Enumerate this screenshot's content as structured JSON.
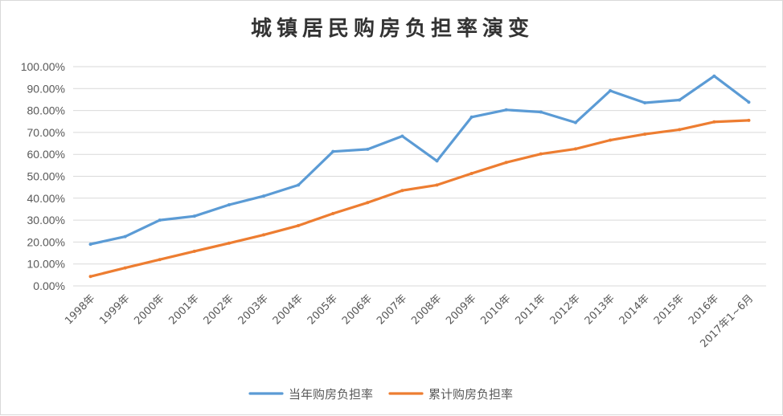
{
  "chart_data": {
    "type": "line",
    "title": "城镇居民购房负担率演变",
    "categories": [
      "1998年",
      "1999年",
      "2000年",
      "2001年",
      "2002年",
      "2003年",
      "2004年",
      "2005年",
      "2006年",
      "2007年",
      "2008年",
      "2009年",
      "2010年",
      "2011年",
      "2012年",
      "2013年",
      "2014年",
      "2015年",
      "2016年",
      "2017年1~6月"
    ],
    "series": [
      {
        "name": "当年购房负担率",
        "color": "#5b9bd5",
        "values": [
          19.0,
          22.5,
          30.0,
          31.8,
          37.0,
          41.0,
          46.0,
          61.3,
          62.3,
          68.3,
          57.0,
          77.0,
          80.3,
          79.3,
          74.5,
          89.0,
          83.5,
          84.8,
          95.7,
          83.8
        ]
      },
      {
        "name": "累计购房负担率",
        "color": "#ed7d31",
        "values": [
          4.3,
          8.2,
          12.0,
          15.8,
          19.5,
          23.3,
          27.5,
          33.0,
          38.0,
          43.5,
          46.0,
          51.3,
          56.3,
          60.2,
          62.5,
          66.5,
          69.2,
          71.3,
          74.8,
          75.5
        ]
      }
    ],
    "y_ticks": [
      "0.00%",
      "10.00%",
      "20.00%",
      "30.00%",
      "40.00%",
      "50.00%",
      "60.00%",
      "70.00%",
      "80.00%",
      "90.00%",
      "100.00%"
    ],
    "ylim": [
      0,
      100
    ],
    "grid": true,
    "legend": "bottom"
  }
}
